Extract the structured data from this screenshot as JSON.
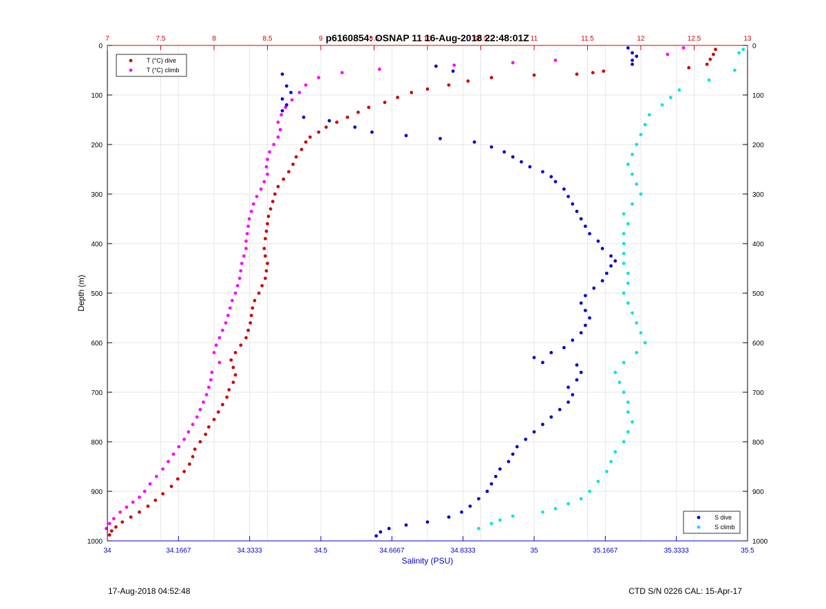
{
  "chart_data": {
    "type": "scatter",
    "title": "p6160854: OSNAP 11 16-Aug-2018 22:48:01Z",
    "xlabel": "Salinity (PSU)",
    "ylabel": "Depth (m)",
    "grid": true,
    "y_axis": {
      "range": [
        0,
        1000
      ],
      "reversed": true,
      "ticks": [
        0,
        100,
        200,
        300,
        400,
        500,
        600,
        700,
        800,
        900,
        1000
      ]
    },
    "salinity_axis": {
      "range": [
        34,
        35.5
      ],
      "ticks": [
        34,
        34.1667,
        34.3333,
        34.5,
        34.6667,
        34.8333,
        35,
        35.1667,
        35.3333,
        35.5
      ],
      "tick_labels": [
        "34",
        "34.1667",
        "34.3333",
        "34.5",
        "34.6667",
        "34.8333",
        "35",
        "35.1667",
        "35.3333",
        "35.5"
      ]
    },
    "temperature_axis": {
      "range": [
        7,
        13
      ],
      "ticks": [
        7,
        7.5,
        8,
        8.5,
        9,
        9.5,
        10,
        10.5,
        11,
        11.5,
        12,
        12.5,
        13
      ],
      "tick_labels": [
        "7",
        "7.5",
        "8",
        "8.5",
        "9",
        "9.5",
        "10",
        "10.5",
        "11",
        "11.5",
        "12",
        "12.5",
        "13"
      ]
    },
    "legend_top_left": [
      "T (°C) dive",
      "T (°C) climb"
    ],
    "legend_bottom_right": [
      "S dive",
      "S climb"
    ],
    "series": [
      {
        "name": "T (°C) dive",
        "axis": "temperature",
        "color": "#cc0000",
        "points": [
          [
            12.7,
            8
          ],
          [
            12.68,
            18
          ],
          [
            12.65,
            28
          ],
          [
            12.62,
            38
          ],
          [
            12.45,
            45
          ],
          [
            11.65,
            52
          ],
          [
            11.55,
            55
          ],
          [
            11.4,
            58
          ],
          [
            11.0,
            60
          ],
          [
            10.6,
            65
          ],
          [
            10.38,
            72
          ],
          [
            10.2,
            80
          ],
          [
            10.0,
            88
          ],
          [
            9.85,
            95
          ],
          [
            9.72,
            105
          ],
          [
            9.6,
            115
          ],
          [
            9.45,
            125
          ],
          [
            9.35,
            135
          ],
          [
            9.25,
            145
          ],
          [
            9.15,
            155
          ],
          [
            9.05,
            165
          ],
          [
            8.98,
            175
          ],
          [
            8.9,
            185
          ],
          [
            8.86,
            195
          ],
          [
            8.82,
            210
          ],
          [
            8.77,
            225
          ],
          [
            8.74,
            240
          ],
          [
            8.7,
            255
          ],
          [
            8.65,
            270
          ],
          [
            8.6,
            285
          ],
          [
            8.57,
            300
          ],
          [
            8.55,
            315
          ],
          [
            8.53,
            330
          ],
          [
            8.51,
            345
          ],
          [
            8.5,
            360
          ],
          [
            8.49,
            375
          ],
          [
            8.48,
            390
          ],
          [
            8.47,
            410
          ],
          [
            8.48,
            425
          ],
          [
            8.5,
            440
          ],
          [
            8.49,
            455
          ],
          [
            8.48,
            470
          ],
          [
            8.45,
            485
          ],
          [
            8.42,
            500
          ],
          [
            8.38,
            515
          ],
          [
            8.36,
            530
          ],
          [
            8.35,
            545
          ],
          [
            8.34,
            560
          ],
          [
            8.32,
            575
          ],
          [
            8.3,
            590
          ],
          [
            8.25,
            605
          ],
          [
            8.2,
            620
          ],
          [
            8.16,
            635
          ],
          [
            8.18,
            650
          ],
          [
            8.2,
            665
          ],
          [
            8.18,
            680
          ],
          [
            8.14,
            695
          ],
          [
            8.12,
            710
          ],
          [
            8.08,
            725
          ],
          [
            8.04,
            740
          ],
          [
            8.0,
            755
          ],
          [
            7.95,
            770
          ],
          [
            7.92,
            785
          ],
          [
            7.87,
            800
          ],
          [
            7.82,
            815
          ],
          [
            7.8,
            830
          ],
          [
            7.77,
            845
          ],
          [
            7.72,
            860
          ],
          [
            7.66,
            875
          ],
          [
            7.6,
            890
          ],
          [
            7.52,
            905
          ],
          [
            7.45,
            918
          ],
          [
            7.38,
            930
          ],
          [
            7.3,
            942
          ],
          [
            7.22,
            952
          ],
          [
            7.14,
            962
          ],
          [
            7.08,
            972
          ],
          [
            7.04,
            980
          ],
          [
            7.02,
            988
          ]
        ]
      },
      {
        "name": "T (°C) climb",
        "axis": "temperature",
        "color": "#ff00ff",
        "points": [
          [
            12.4,
            5
          ],
          [
            12.25,
            18
          ],
          [
            11.2,
            30
          ],
          [
            10.8,
            35
          ],
          [
            10.25,
            40
          ],
          [
            9.55,
            48
          ],
          [
            9.2,
            55
          ],
          [
            8.98,
            65
          ],
          [
            8.86,
            80
          ],
          [
            8.8,
            95
          ],
          [
            8.73,
            110
          ],
          [
            8.67,
            125
          ],
          [
            8.63,
            140
          ],
          [
            8.6,
            155
          ],
          [
            8.62,
            170
          ],
          [
            8.6,
            185
          ],
          [
            8.56,
            200
          ],
          [
            8.52,
            215
          ],
          [
            8.5,
            230
          ],
          [
            8.49,
            245
          ],
          [
            8.5,
            260
          ],
          [
            8.47,
            275
          ],
          [
            8.44,
            290
          ],
          [
            8.4,
            305
          ],
          [
            8.37,
            320
          ],
          [
            8.35,
            335
          ],
          [
            8.33,
            350
          ],
          [
            8.32,
            365
          ],
          [
            8.31,
            380
          ],
          [
            8.3,
            395
          ],
          [
            8.3,
            410
          ],
          [
            8.28,
            425
          ],
          [
            8.26,
            440
          ],
          [
            8.25,
            455
          ],
          [
            8.24,
            470
          ],
          [
            8.22,
            485
          ],
          [
            8.2,
            500
          ],
          [
            8.17,
            515
          ],
          [
            8.15,
            530
          ],
          [
            8.13,
            545
          ],
          [
            8.11,
            560
          ],
          [
            8.08,
            575
          ],
          [
            8.05,
            590
          ],
          [
            8.02,
            605
          ],
          [
            8.0,
            620
          ],
          [
            8.05,
            640
          ],
          [
            7.98,
            660
          ],
          [
            7.97,
            675
          ],
          [
            7.95,
            690
          ],
          [
            7.93,
            705
          ],
          [
            7.9,
            720
          ],
          [
            7.87,
            735
          ],
          [
            7.84,
            750
          ],
          [
            7.8,
            765
          ],
          [
            7.76,
            780
          ],
          [
            7.72,
            795
          ],
          [
            7.67,
            810
          ],
          [
            7.62,
            825
          ],
          [
            7.57,
            840
          ],
          [
            7.52,
            855
          ],
          [
            7.46,
            870
          ],
          [
            7.4,
            885
          ],
          [
            7.35,
            900
          ],
          [
            7.3,
            912
          ],
          [
            7.24,
            922
          ],
          [
            7.18,
            932
          ],
          [
            7.12,
            942
          ],
          [
            7.06,
            955
          ],
          [
            7.02,
            965
          ],
          [
            6.99,
            975
          ]
        ]
      },
      {
        "name": "S dive",
        "axis": "salinity",
        "color": "#0000cc",
        "points": [
          [
            35.22,
            5
          ],
          [
            35.23,
            15
          ],
          [
            35.24,
            22
          ],
          [
            35.23,
            30
          ],
          [
            35.23,
            38
          ],
          [
            34.77,
            42
          ],
          [
            34.81,
            52
          ],
          [
            34.41,
            58
          ],
          [
            34.42,
            82
          ],
          [
            34.43,
            95
          ],
          [
            34.41,
            108
          ],
          [
            34.42,
            120
          ],
          [
            34.41,
            132
          ],
          [
            34.46,
            145
          ],
          [
            34.52,
            152
          ],
          [
            34.58,
            165
          ],
          [
            34.62,
            175
          ],
          [
            34.7,
            182
          ],
          [
            34.78,
            188
          ],
          [
            34.86,
            195
          ],
          [
            34.9,
            205
          ],
          [
            34.93,
            215
          ],
          [
            34.95,
            225
          ],
          [
            34.97,
            235
          ],
          [
            34.99,
            245
          ],
          [
            35.02,
            255
          ],
          [
            35.04,
            265
          ],
          [
            35.05,
            275
          ],
          [
            35.07,
            290
          ],
          [
            35.08,
            305
          ],
          [
            35.09,
            320
          ],
          [
            35.1,
            335
          ],
          [
            35.11,
            350
          ],
          [
            35.12,
            365
          ],
          [
            35.13,
            380
          ],
          [
            35.15,
            395
          ],
          [
            35.16,
            410
          ],
          [
            35.18,
            425
          ],
          [
            35.19,
            435
          ],
          [
            35.18,
            445
          ],
          [
            35.17,
            460
          ],
          [
            35.16,
            475
          ],
          [
            35.14,
            490
          ],
          [
            35.12,
            505
          ],
          [
            35.11,
            520
          ],
          [
            35.12,
            535
          ],
          [
            35.13,
            550
          ],
          [
            35.12,
            565
          ],
          [
            35.11,
            580
          ],
          [
            35.09,
            595
          ],
          [
            35.07,
            610
          ],
          [
            35.04,
            620
          ],
          [
            35.0,
            630
          ],
          [
            35.02,
            640
          ],
          [
            35.1,
            645
          ],
          [
            35.11,
            660
          ],
          [
            35.1,
            675
          ],
          [
            35.08,
            690
          ],
          [
            35.09,
            705
          ],
          [
            35.08,
            720
          ],
          [
            35.06,
            735
          ],
          [
            35.04,
            750
          ],
          [
            35.02,
            765
          ],
          [
            35.0,
            780
          ],
          [
            34.98,
            795
          ],
          [
            34.96,
            810
          ],
          [
            34.95,
            825
          ],
          [
            34.94,
            840
          ],
          [
            34.92,
            855
          ],
          [
            34.91,
            870
          ],
          [
            34.9,
            885
          ],
          [
            34.89,
            900
          ],
          [
            34.87,
            915
          ],
          [
            34.85,
            930
          ],
          [
            34.83,
            942
          ],
          [
            34.8,
            952
          ],
          [
            34.75,
            962
          ],
          [
            34.7,
            968
          ],
          [
            34.66,
            975
          ],
          [
            34.64,
            982
          ],
          [
            34.63,
            990
          ]
        ]
      },
      {
        "name": "S climb",
        "axis": "salinity",
        "color": "#00e5e5",
        "points": [
          [
            35.49,
            8
          ],
          [
            35.48,
            15
          ],
          [
            35.47,
            50
          ],
          [
            35.41,
            70
          ],
          [
            35.34,
            90
          ],
          [
            35.32,
            105
          ],
          [
            35.3,
            120
          ],
          [
            35.27,
            140
          ],
          [
            35.26,
            160
          ],
          [
            35.25,
            180
          ],
          [
            35.24,
            200
          ],
          [
            35.23,
            220
          ],
          [
            35.22,
            240
          ],
          [
            35.23,
            260
          ],
          [
            35.24,
            280
          ],
          [
            35.25,
            300
          ],
          [
            35.23,
            320
          ],
          [
            35.21,
            340
          ],
          [
            35.22,
            360
          ],
          [
            35.21,
            380
          ],
          [
            35.21,
            400
          ],
          [
            35.21,
            420
          ],
          [
            35.21,
            440
          ],
          [
            35.22,
            460
          ],
          [
            35.22,
            480
          ],
          [
            35.21,
            500
          ],
          [
            35.22,
            520
          ],
          [
            35.23,
            540
          ],
          [
            35.24,
            560
          ],
          [
            35.25,
            580
          ],
          [
            35.26,
            600
          ],
          [
            35.24,
            620
          ],
          [
            35.21,
            640
          ],
          [
            35.19,
            660
          ],
          [
            35.2,
            680
          ],
          [
            35.21,
            700
          ],
          [
            35.22,
            720
          ],
          [
            35.22,
            740
          ],
          [
            35.23,
            760
          ],
          [
            35.22,
            780
          ],
          [
            35.21,
            800
          ],
          [
            35.19,
            820
          ],
          [
            35.18,
            840
          ],
          [
            35.17,
            860
          ],
          [
            35.15,
            880
          ],
          [
            35.13,
            900
          ],
          [
            35.11,
            915
          ],
          [
            35.08,
            925
          ],
          [
            35.05,
            935
          ],
          [
            35.02,
            942
          ],
          [
            34.95,
            950
          ],
          [
            34.92,
            958
          ],
          [
            34.9,
            965
          ],
          [
            34.87,
            975
          ]
        ]
      }
    ]
  },
  "footer": {
    "left": "17-Aug-2018 04:52:48",
    "right": "CTD S/N 0226  CAL: 15-Apr-17"
  }
}
